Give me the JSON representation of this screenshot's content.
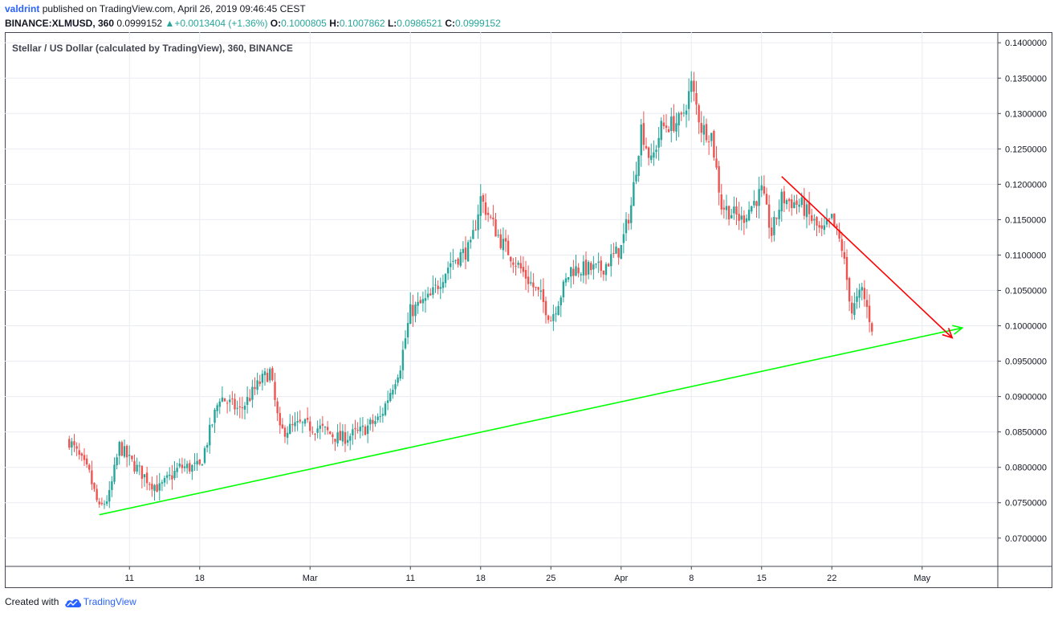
{
  "header": {
    "user": "valdrint",
    "published": "published on TradingView.com, April 26, 2019 09:46:45 CEST"
  },
  "symbol_line": {
    "symbol": "BINANCE:XLMUSD, 360",
    "price": "0.0999152",
    "change_icon": "triangle-up-icon",
    "change": "+0.0013404 (+1.36%)",
    "o_label": "O:",
    "o_value": "0.1000805",
    "h_label": "H:",
    "h_value": "0.1007862",
    "l_label": "L:",
    "l_value": "0.0986521",
    "c_label": "C:",
    "c_value": "0.0999152"
  },
  "legend": "Stellar / US Dollar (calculated by TradingView), 360, BINANCE",
  "footer": {
    "created_with": "Created with",
    "brand": "TradingView",
    "logo_icon": "tradingview-cloud-icon"
  },
  "colors": {
    "up": "#26a69a",
    "down": "#ef5350",
    "support": "#00ff00",
    "resistance": "#ff0000",
    "grid": "#e9ecf2",
    "axis_text": "#131722"
  },
  "chart_data": {
    "type": "candlestick",
    "title": "Stellar / US Dollar (calculated by TradingView), 360, BINANCE",
    "x_ticks": [
      "11",
      "18",
      "Mar",
      "11",
      "18",
      "25",
      "Apr",
      "8",
      "15",
      "22",
      "May"
    ],
    "y_ticks": [
      "0.1400000",
      "0.1350000",
      "0.1300000",
      "0.1250000",
      "0.1200000",
      "0.1150000",
      "0.1100000",
      "0.1050000",
      "0.1000000",
      "0.0950000",
      "0.0900000",
      "0.0850000",
      "0.0800000",
      "0.0750000",
      "0.0700000"
    ],
    "ylim": [
      0.066,
      0.1415
    ],
    "grid": true,
    "close_path": [
      [
        "2019-02-05",
        0.0838
      ],
      [
        "2019-02-07",
        0.079
      ],
      [
        "2019-02-08",
        0.074
      ],
      [
        "2019-02-09",
        0.076
      ],
      [
        "2019-02-10",
        0.083
      ],
      [
        "2019-02-11",
        0.081
      ],
      [
        "2019-02-13",
        0.078
      ],
      [
        "2019-02-14",
        0.077
      ],
      [
        "2019-02-16",
        0.08
      ],
      [
        "2019-02-18",
        0.08
      ],
      [
        "2019-02-20",
        0.09
      ],
      [
        "2019-02-22",
        0.088
      ],
      [
        "2019-02-24",
        0.092
      ],
      [
        "2019-02-25",
        0.0935
      ],
      [
        "2019-02-26",
        0.085
      ],
      [
        "2019-02-28",
        0.086
      ],
      [
        "2019-03-02",
        0.0855
      ],
      [
        "2019-03-04",
        0.084
      ],
      [
        "2019-03-06",
        0.085
      ],
      [
        "2019-03-08",
        0.087
      ],
      [
        "2019-03-10",
        0.0945
      ],
      [
        "2019-03-11",
        0.102
      ],
      [
        "2019-03-13",
        0.104
      ],
      [
        "2019-03-15",
        0.109
      ],
      [
        "2019-03-17",
        0.111
      ],
      [
        "2019-03-18",
        0.118
      ],
      [
        "2019-03-20",
        0.112
      ],
      [
        "2019-03-22",
        0.108
      ],
      [
        "2019-03-24",
        0.104
      ],
      [
        "2019-03-25",
        0.101
      ],
      [
        "2019-03-27",
        0.108
      ],
      [
        "2019-03-30",
        0.108
      ],
      [
        "2019-04-01",
        0.111
      ],
      [
        "2019-04-02",
        0.117
      ],
      [
        "2019-04-03",
        0.128
      ],
      [
        "2019-04-04",
        0.123
      ],
      [
        "2019-04-05",
        0.128
      ],
      [
        "2019-04-07",
        0.129
      ],
      [
        "2019-04-08",
        0.134
      ],
      [
        "2019-04-09",
        0.128
      ],
      [
        "2019-04-10",
        0.127
      ],
      [
        "2019-04-11",
        0.117
      ],
      [
        "2019-04-13",
        0.115
      ],
      [
        "2019-04-15",
        0.119
      ],
      [
        "2019-04-16",
        0.113
      ],
      [
        "2019-04-17",
        0.118
      ],
      [
        "2019-04-19",
        0.117
      ],
      [
        "2019-04-21",
        0.113
      ],
      [
        "2019-04-22",
        0.115
      ],
      [
        "2019-04-23",
        0.111
      ],
      [
        "2019-04-24",
        0.102
      ],
      [
        "2019-04-25",
        0.105
      ],
      [
        "2019-04-26",
        0.0999
      ]
    ],
    "trendlines": [
      {
        "kind": "support",
        "color": "#00ff00",
        "from": [
          "2019-02-08",
          0.0733
        ],
        "to": [
          "2019-05-05",
          0.0997
        ],
        "arrow": true
      },
      {
        "kind": "resistance",
        "color": "#ff0000",
        "from": [
          "2019-04-17",
          0.1211
        ],
        "to": [
          "2019-05-04",
          0.0983
        ],
        "arrow": true
      }
    ]
  }
}
